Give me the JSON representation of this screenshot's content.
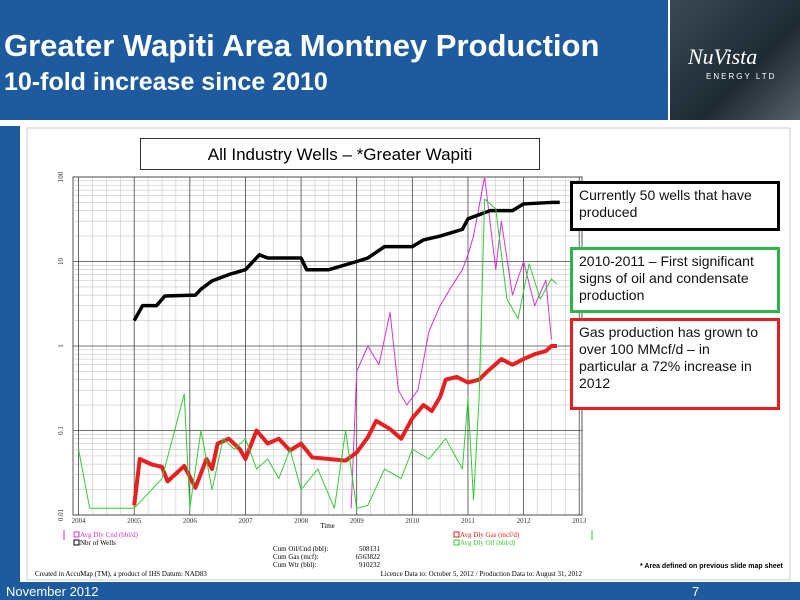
{
  "header": {
    "title": "Greater Wapiti Area Montney Production",
    "subtitle": "10-fold increase since 2010",
    "logo": "NuVista",
    "logo_sub": "ENERGY LTD"
  },
  "footer": {
    "date": "November 2012",
    "page": "7"
  },
  "callouts": [
    "Currently 50 wells that have produced",
    "2010-2011 – First significant signs of oil and condensate production",
    "Gas production has grown to over 100 MMcf/d – in particular a 72% increase in 2012"
  ],
  "note": "* Area defined on previous slide map sheet",
  "cumulative": [
    {
      "label": "Cum Oil/Cnd (bbl):",
      "value": "508131"
    },
    {
      "label": "Cum Gas (mcf):",
      "value": "6563822"
    },
    {
      "label": "Cum Wtr (bbl):",
      "value": "910232"
    }
  ],
  "credits": {
    "left": "Created in AccuMap (TM), a product of IHS Datum: NAD83",
    "right": "Licence Data to: October 5, 2012 / Production Data to: August 31, 2012"
  },
  "chart_data": {
    "type": "line",
    "title": "All Industry Wells – *Greater Wapiti",
    "xlabel": "Time",
    "log_y": true,
    "grid": true,
    "xlim": [
      2003.9,
      2013.05
    ],
    "xticks": [
      2004,
      2005,
      2006,
      2007,
      2008,
      2009,
      2010,
      2011,
      2012,
      2013
    ],
    "ylim": [
      0.01,
      100
    ],
    "yticks": [
      0.01,
      0.1,
      1,
      10,
      100
    ],
    "series": [
      {
        "name": "Avg Dly Cnd (bbl/d)",
        "color": "#d633d6",
        "width": 1,
        "x": [
          2008.9,
          2009.0,
          2009.2,
          2009.4,
          2009.6,
          2009.75,
          2009.9,
          2010.1,
          2010.3,
          2010.5,
          2010.7,
          2010.9,
          2011.0,
          2011.1,
          2011.3,
          2011.5,
          2011.6,
          2011.8,
          2012.0,
          2012.2,
          2012.4,
          2012.5
        ],
        "values": [
          0.012,
          0.5,
          1.0,
          0.6,
          2.5,
          0.3,
          0.2,
          0.3,
          1.5,
          3,
          5,
          8,
          12,
          20,
          100,
          8,
          30,
          4,
          10,
          3,
          6,
          1.2
        ]
      },
      {
        "name": "Nbr of Wells",
        "color": "#000000",
        "width": 3.5,
        "x": [
          2005.0,
          2005.15,
          2005.4,
          2005.55,
          2006.1,
          2006.2,
          2006.4,
          2006.7,
          2007.0,
          2007.25,
          2007.4,
          2008.0,
          2008.1,
          2008.5,
          2009.0,
          2009.2,
          2009.5,
          2010.0,
          2010.2,
          2010.5,
          2010.9,
          2011.0,
          2011.4,
          2011.8,
          2012.0,
          2012.5,
          2012.65
        ],
        "values": [
          2,
          3,
          3,
          3.9,
          4,
          4.7,
          5.9,
          7,
          8,
          12,
          11,
          11,
          8,
          8,
          10,
          11,
          15,
          15,
          18,
          20,
          24,
          32,
          40,
          40,
          48,
          50,
          50
        ]
      },
      {
        "name": "Avg Dly Gas (mcf/d)",
        "color": "#e62020",
        "width": 4,
        "x": [
          2005.0,
          2005.1,
          2005.3,
          2005.5,
          2005.6,
          2005.9,
          2006.1,
          2006.3,
          2006.4,
          2006.5,
          2006.7,
          2006.9,
          2007.0,
          2007.2,
          2007.4,
          2007.6,
          2007.8,
          2008.0,
          2008.2,
          2008.5,
          2008.8,
          2009.0,
          2009.2,
          2009.35,
          2009.6,
          2009.8,
          2010.0,
          2010.2,
          2010.35,
          2010.5,
          2010.6,
          2010.8,
          2011.0,
          2011.2,
          2011.35,
          2011.6,
          2011.8,
          2012.0,
          2012.2,
          2012.4,
          2012.5,
          2012.6
        ],
        "values": [
          0.013,
          0.046,
          0.04,
          0.037,
          0.025,
          0.038,
          0.021,
          0.046,
          0.035,
          0.07,
          0.08,
          0.06,
          0.046,
          0.1,
          0.07,
          0.08,
          0.058,
          0.07,
          0.048,
          0.046,
          0.044,
          0.055,
          0.083,
          0.13,
          0.104,
          0.08,
          0.14,
          0.2,
          0.17,
          0.25,
          0.4,
          0.43,
          0.37,
          0.4,
          0.5,
          0.7,
          0.6,
          0.7,
          0.8,
          0.87,
          1.0,
          1.0
        ]
      },
      {
        "name": "Avg Dly Oil (bbl/d)",
        "color": "#33cc33",
        "width": 1,
        "x": [
          2004.0,
          2004.2,
          2005.0,
          2005.5,
          2005.9,
          2006.0,
          2006.2,
          2006.4,
          2006.6,
          2006.8,
          2007.0,
          2007.2,
          2007.4,
          2007.6,
          2007.8,
          2008.0,
          2008.3,
          2008.6,
          2008.8,
          2009.0,
          2009.2,
          2009.5,
          2009.8,
          2010.0,
          2010.3,
          2010.6,
          2010.9,
          2011.0,
          2011.1,
          2011.2,
          2011.3,
          2011.5,
          2011.7,
          2011.9,
          2012.1,
          2012.3,
          2012.5,
          2012.6
        ],
        "values": [
          0.06,
          0.012,
          0.012,
          0.027,
          0.27,
          0.012,
          0.1,
          0.02,
          0.08,
          0.06,
          0.08,
          0.035,
          0.046,
          0.027,
          0.06,
          0.02,
          0.035,
          0.012,
          0.1,
          0.012,
          0.013,
          0.035,
          0.027,
          0.06,
          0.046,
          0.08,
          0.035,
          0.24,
          0.015,
          0.24,
          55,
          42,
          3.6,
          2.1,
          9.4,
          3.6,
          6.2,
          5.4
        ]
      }
    ]
  }
}
